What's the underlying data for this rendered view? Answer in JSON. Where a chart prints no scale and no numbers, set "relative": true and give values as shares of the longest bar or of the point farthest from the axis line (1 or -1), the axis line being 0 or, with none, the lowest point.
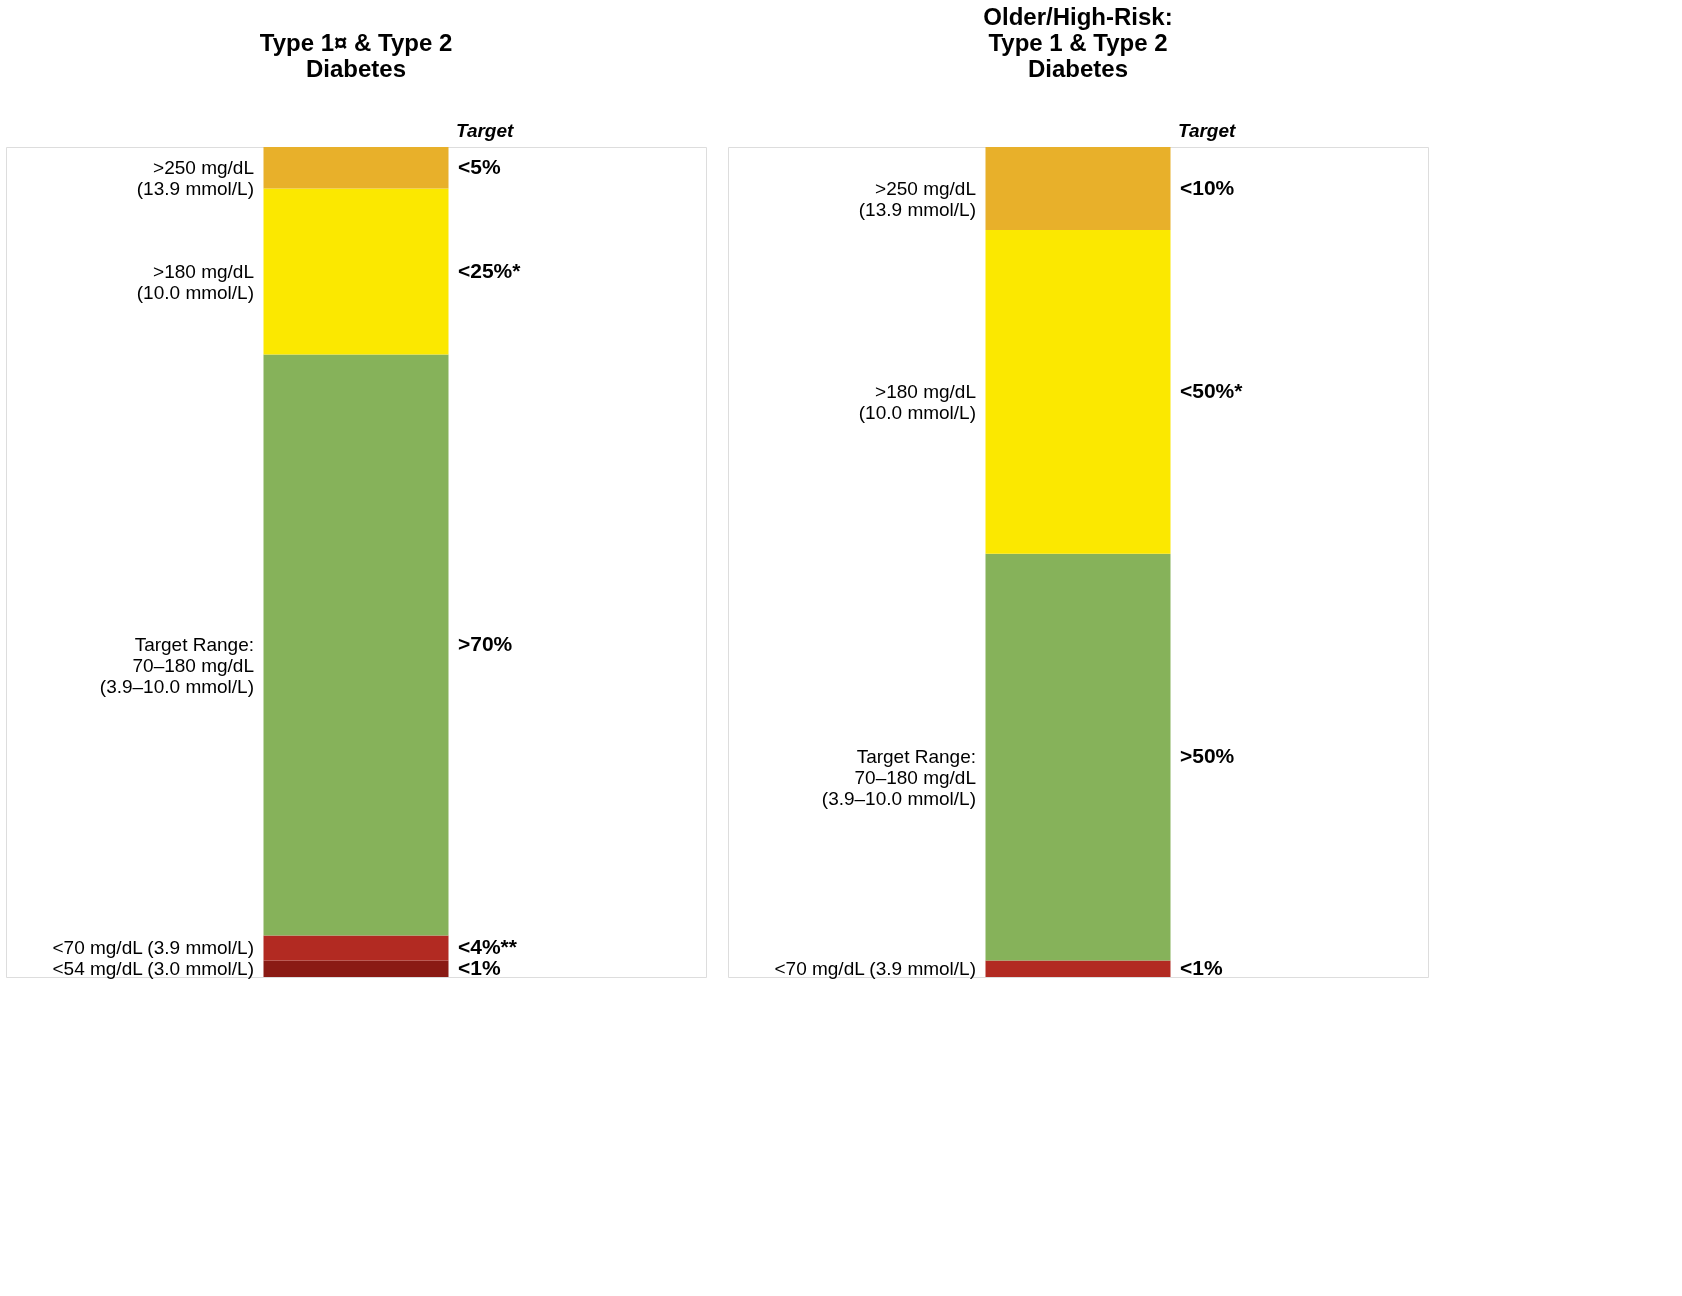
{
  "chart_data": [
    {
      "type": "bar",
      "title": "Type 1¤ & Type 2\nDiabetes",
      "categories": [
        null
      ],
      "stacked": true,
      "relative": true,
      "annotations": [
        "Target",
        "<1%",
        "<4%**",
        ">70%",
        "<25%*",
        "<5%"
      ],
      "series": [
        {
          "name": "<54 mg/dL (3.0 mmol/L)",
          "color": "#8a1a14",
          "values": [
            0.02
          ]
        },
        {
          "name": "<70 mg/dL (3.9 mmol/L)",
          "color": "#b22a22",
          "values": [
            0.03
          ]
        },
        {
          "name": "Target Range:\n70–180 mg/dL\n(3.9–10.0 mmol/L)",
          "color": "#86b25a",
          "values": [
            0.7
          ]
        },
        {
          "name": ">180 mg/dL\n(10.0 mmol/L)",
          "color": "#fbe800",
          "values": [
            0.2
          ]
        },
        {
          "name": ">250 mg/dL\n(13.9 mmol/L)",
          "color": "#e8b02a",
          "values": [
            0.05
          ]
        }
      ]
    },
    {
      "type": "bar",
      "title": "Older/High-Risk:\nType 1 & Type 2\nDiabetes",
      "categories": [
        null
      ],
      "stacked": true,
      "relative": true,
      "annotations": [
        "Target",
        "<1%",
        ">50%",
        "<50%*",
        "<10%"
      ],
      "series": [
        {
          "name": "<70 mg/dL (3.9 mmol/L)",
          "color": "#b22a22",
          "values": [
            0.02
          ]
        },
        {
          "name": "Target Range:\n70–180 mg/dL\n(3.9–10.0 mmol/L)",
          "color": "#86b25a",
          "values": [
            0.49
          ]
        },
        {
          "name": ">180 mg/dL\n(10.0 mmol/L)",
          "color": "#fbe800",
          "values": [
            0.39
          ]
        },
        {
          "name": ">250 mg/dL\n(13.9 mmol/L)",
          "color": "#e8b02a",
          "values": [
            0.1
          ]
        }
      ]
    }
  ]
}
